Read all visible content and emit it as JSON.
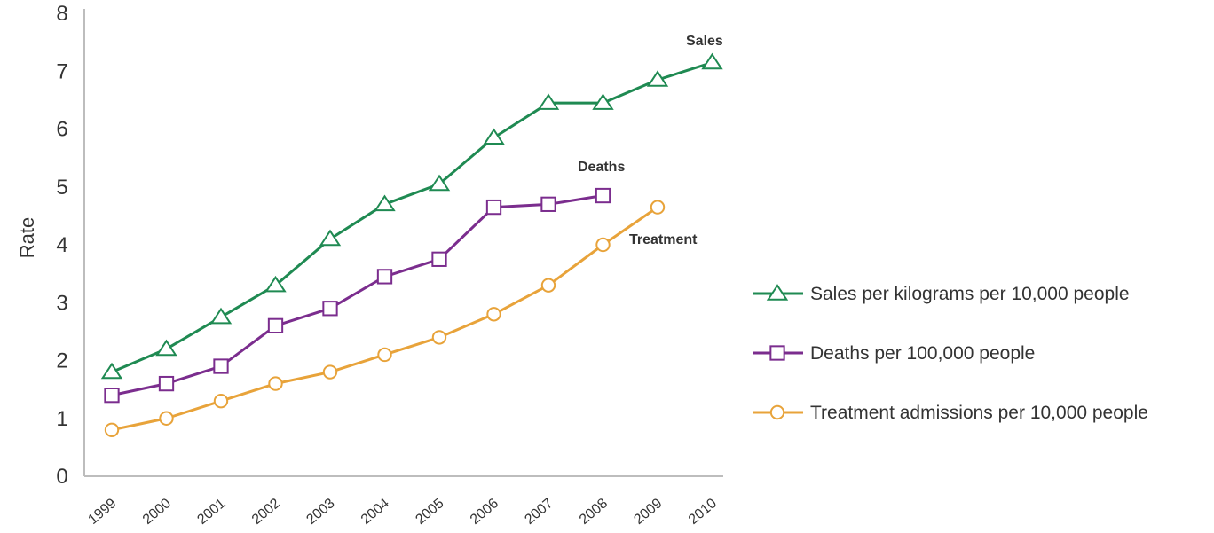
{
  "chart_data": {
    "type": "line",
    "ylabel": "Rate",
    "ylim": [
      0,
      8
    ],
    "yticks": [
      "0",
      "1",
      "2",
      "3",
      "4",
      "5",
      "6",
      "7",
      "8"
    ],
    "categories": [
      "1999",
      "2000",
      "2001",
      "2002",
      "2003",
      "2004",
      "2005",
      "2006",
      "2007",
      "2008",
      "2009",
      "2010"
    ],
    "grid": false,
    "legend_position": "right",
    "series": [
      {
        "name": "Sales per kilograms per 10,000 people",
        "label": "Sales",
        "color": "#1f8a52",
        "marker": "triangle",
        "values": [
          1.8,
          2.2,
          2.75,
          3.3,
          4.1,
          4.7,
          5.05,
          5.85,
          6.45,
          6.45,
          6.85,
          7.15
        ]
      },
      {
        "name": "Deaths per 100,000 people",
        "label": "Deaths",
        "color": "#7b2d8e",
        "marker": "square",
        "values": [
          1.4,
          1.6,
          1.9,
          2.6,
          2.9,
          3.45,
          3.75,
          4.65,
          4.7,
          4.85,
          null,
          null
        ]
      },
      {
        "name": "Treatment admissions per 10,000 people",
        "label": "Treatment",
        "color": "#e8a33a",
        "marker": "circle",
        "values": [
          0.8,
          1.0,
          1.3,
          1.6,
          1.8,
          2.1,
          2.4,
          2.8,
          3.3,
          4.0,
          4.65,
          null
        ]
      }
    ]
  }
}
